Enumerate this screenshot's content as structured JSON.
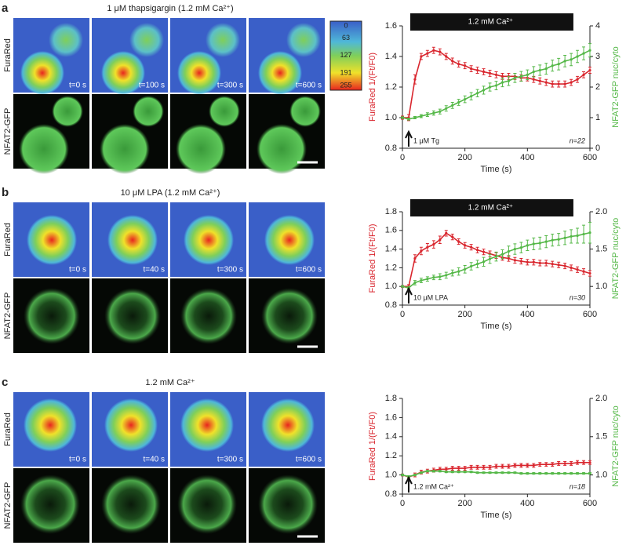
{
  "panels": [
    {
      "letter": "a",
      "title": "1 μM thapsigargin (1.2 mM Ca²⁺)",
      "rows": [
        "FuraRed",
        "NFAT2-GFP"
      ],
      "times": [
        "t=0 s",
        "t=100 s",
        "t=300 s",
        "t=600 s"
      ],
      "colorbar_ticks": [
        0,
        63,
        127,
        191,
        255
      ]
    },
    {
      "letter": "b",
      "title": "10 μM LPA (1.2 mM Ca²⁺)",
      "rows": [
        "FuraRed",
        "NFAT2-GFP"
      ],
      "times": [
        "t=0 s",
        "t=40 s",
        "t=300 s",
        "t=600 s"
      ]
    },
    {
      "letter": "c",
      "title": "1.2 mM Ca²⁺",
      "rows": [
        "FuraRed",
        "NFAT2-GFP"
      ],
      "times": [
        "t=0 s",
        "t=40 s",
        "t=300 s",
        "t=600 s"
      ]
    }
  ],
  "chart_data": [
    {
      "type": "line",
      "xlabel": "Time (s)",
      "ylabel": "FuraRed 1/(Ft/F0)",
      "y2label": "NFAT2-GFP nuc/cyto",
      "band_label": "1.2 mM Ca²⁺",
      "arrow_label": "1 μM Tg",
      "n_label": "n=22",
      "x": [
        0,
        20,
        40,
        60,
        80,
        100,
        120,
        140,
        160,
        180,
        200,
        220,
        240,
        260,
        280,
        300,
        320,
        340,
        360,
        380,
        400,
        420,
        440,
        460,
        480,
        500,
        520,
        540,
        560,
        580,
        600
      ],
      "xlim": [
        0,
        600
      ],
      "xticks": [
        0,
        200,
        400,
        600
      ],
      "ylim": [
        0.8,
        1.6
      ],
      "yticks": [
        0.8,
        {
          "value": 1,
          "label": "1.0"
        },
        1.2,
        1.4,
        1.6
      ],
      "y2lim": [
        0,
        4
      ],
      "y2ticks": [
        0,
        1,
        2,
        3,
        4
      ],
      "series": [
        {
          "name": "FuraRed",
          "color": "#d9262e",
          "values": [
            1.0,
            1.0,
            1.25,
            1.4,
            1.42,
            1.44,
            1.43,
            1.4,
            1.37,
            1.35,
            1.34,
            1.32,
            1.31,
            1.3,
            1.29,
            1.28,
            1.27,
            1.27,
            1.27,
            1.26,
            1.26,
            1.25,
            1.24,
            1.23,
            1.22,
            1.22,
            1.22,
            1.23,
            1.25,
            1.28,
            1.31
          ],
          "errors": [
            0.01,
            0.02,
            0.03,
            0.02,
            0.02,
            0.02,
            0.02,
            0.02,
            0.02,
            0.02,
            0.02,
            0.02,
            0.02,
            0.02,
            0.02,
            0.02,
            0.02,
            0.02,
            0.02,
            0.02,
            0.02,
            0.02,
            0.02,
            0.02,
            0.02,
            0.02,
            0.02,
            0.02,
            0.02,
            0.02,
            0.02
          ]
        },
        {
          "name": "NFAT2-GFP",
          "color": "#55b848",
          "axis": "y2",
          "values": [
            1.0,
            0.95,
            1.0,
            1.05,
            1.1,
            1.15,
            1.2,
            1.3,
            1.4,
            1.5,
            1.6,
            1.7,
            1.8,
            1.9,
            2.0,
            2.05,
            2.15,
            2.2,
            2.3,
            2.35,
            2.4,
            2.5,
            2.55,
            2.6,
            2.7,
            2.75,
            2.85,
            2.9,
            3.0,
            3.1,
            3.2
          ],
          "errors": [
            0.03,
            0.03,
            0.04,
            0.05,
            0.06,
            0.07,
            0.08,
            0.09,
            0.1,
            0.1,
            0.11,
            0.12,
            0.12,
            0.13,
            0.13,
            0.14,
            0.14,
            0.15,
            0.15,
            0.16,
            0.16,
            0.17,
            0.17,
            0.18,
            0.18,
            0.19,
            0.19,
            0.2,
            0.2,
            0.21,
            0.22
          ]
        }
      ]
    },
    {
      "type": "line",
      "xlabel": "Time (s)",
      "ylabel": "FuraRed 1/(Ft/F0)",
      "y2label": "NFAT2-GFP nuc/cyto",
      "band_label": "1.2 mM Ca²⁺",
      "arrow_label": "10 μM LPA",
      "n_label": "n=30",
      "x": [
        0,
        20,
        40,
        60,
        80,
        100,
        120,
        140,
        160,
        180,
        200,
        220,
        240,
        260,
        280,
        300,
        320,
        340,
        360,
        380,
        400,
        420,
        440,
        460,
        480,
        500,
        520,
        540,
        560,
        580,
        600
      ],
      "xlim": [
        0,
        600
      ],
      "xticks": [
        0,
        200,
        400,
        600
      ],
      "ylim": [
        0.8,
        1.8
      ],
      "yticks": [
        0.8,
        {
          "value": 1,
          "label": "1.0"
        },
        1.2,
        1.4,
        1.6,
        1.8
      ],
      "y2lim": [
        0.75,
        2
      ],
      "y2ticks": [
        {
          "value": 1,
          "label": "1.0"
        },
        1.5,
        {
          "value": 2,
          "label": "2.0"
        }
      ],
      "series": [
        {
          "name": "FuraRed",
          "color": "#d9262e",
          "values": [
            1.0,
            1.0,
            1.3,
            1.38,
            1.42,
            1.45,
            1.5,
            1.57,
            1.53,
            1.48,
            1.44,
            1.42,
            1.39,
            1.37,
            1.35,
            1.33,
            1.31,
            1.3,
            1.28,
            1.27,
            1.26,
            1.26,
            1.25,
            1.25,
            1.24,
            1.23,
            1.22,
            1.2,
            1.18,
            1.16,
            1.14
          ],
          "errors": [
            0.01,
            0.02,
            0.04,
            0.04,
            0.04,
            0.04,
            0.04,
            0.03,
            0.03,
            0.03,
            0.03,
            0.03,
            0.03,
            0.03,
            0.03,
            0.03,
            0.03,
            0.03,
            0.03,
            0.03,
            0.03,
            0.03,
            0.03,
            0.03,
            0.03,
            0.03,
            0.03,
            0.03,
            0.03,
            0.03,
            0.03
          ]
        },
        {
          "name": "NFAT2-GFP",
          "color": "#55b848",
          "axis": "y2",
          "values": [
            1.0,
            0.98,
            1.05,
            1.08,
            1.1,
            1.12,
            1.13,
            1.15,
            1.18,
            1.2,
            1.23,
            1.27,
            1.3,
            1.33,
            1.37,
            1.4,
            1.43,
            1.47,
            1.5,
            1.52,
            1.55,
            1.57,
            1.58,
            1.6,
            1.62,
            1.63,
            1.65,
            1.67,
            1.68,
            1.7,
            1.72
          ],
          "errors": [
            0.01,
            0.02,
            0.03,
            0.03,
            0.03,
            0.03,
            0.04,
            0.04,
            0.04,
            0.05,
            0.05,
            0.05,
            0.05,
            0.06,
            0.06,
            0.06,
            0.06,
            0.07,
            0.07,
            0.07,
            0.07,
            0.08,
            0.08,
            0.08,
            0.08,
            0.08,
            0.09,
            0.09,
            0.1,
            0.12,
            0.14
          ]
        }
      ]
    },
    {
      "type": "line",
      "xlabel": "Time (s)",
      "ylabel": "FuraRed 1/(Ft/F0)",
      "y2label": "NFAT2-GFP nuc/cyto",
      "arrow_label": "1.2 mM Ca²⁺",
      "n_label": "n=18",
      "x": [
        0,
        20,
        40,
        60,
        80,
        100,
        120,
        140,
        160,
        180,
        200,
        220,
        240,
        260,
        280,
        300,
        320,
        340,
        360,
        380,
        400,
        420,
        440,
        460,
        480,
        500,
        520,
        540,
        560,
        580,
        600
      ],
      "xlim": [
        0,
        600
      ],
      "xticks": [
        0,
        200,
        400,
        600
      ],
      "ylim": [
        0.8,
        1.8
      ],
      "yticks": [
        0.8,
        {
          "value": 1,
          "label": "1.0"
        },
        1.2,
        1.4,
        1.6,
        1.8
      ],
      "y2lim": [
        0.75,
        2
      ],
      "y2ticks": [
        {
          "value": 1,
          "label": "1.0"
        },
        1.5,
        {
          "value": 2,
          "label": "2.0"
        }
      ],
      "series": [
        {
          "name": "FuraRed",
          "color": "#d9262e",
          "values": [
            1.0,
            0.98,
            1.0,
            1.03,
            1.04,
            1.05,
            1.06,
            1.06,
            1.07,
            1.07,
            1.07,
            1.08,
            1.08,
            1.08,
            1.08,
            1.09,
            1.09,
            1.09,
            1.1,
            1.1,
            1.1,
            1.1,
            1.11,
            1.11,
            1.11,
            1.12,
            1.12,
            1.12,
            1.13,
            1.13,
            1.13
          ],
          "errors": [
            0.01,
            0.01,
            0.02,
            0.02,
            0.02,
            0.02,
            0.02,
            0.02,
            0.02,
            0.02,
            0.02,
            0.02,
            0.02,
            0.02,
            0.02,
            0.02,
            0.02,
            0.02,
            0.02,
            0.02,
            0.02,
            0.02,
            0.02,
            0.02,
            0.02,
            0.02,
            0.02,
            0.02,
            0.02,
            0.02,
            0.02
          ]
        },
        {
          "name": "NFAT2-GFP",
          "color": "#55b848",
          "axis": "y2",
          "values": [
            1.0,
            0.98,
            1.0,
            1.03,
            1.05,
            1.05,
            1.05,
            1.04,
            1.04,
            1.04,
            1.04,
            1.04,
            1.03,
            1.03,
            1.03,
            1.03,
            1.03,
            1.03,
            1.03,
            1.02,
            1.02,
            1.02,
            1.02,
            1.02,
            1.02,
            1.02,
            1.02,
            1.02,
            1.02,
            1.02,
            1.02
          ],
          "errors": [
            0.01,
            0.01,
            0.01,
            0.01,
            0.01,
            0.01,
            0.01,
            0.01,
            0.01,
            0.01,
            0.01,
            0.01,
            0.01,
            0.01,
            0.01,
            0.01,
            0.01,
            0.01,
            0.01,
            0.01,
            0.01,
            0.01,
            0.01,
            0.01,
            0.01,
            0.01,
            0.01,
            0.01,
            0.01,
            0.01,
            0.01
          ]
        }
      ]
    }
  ]
}
